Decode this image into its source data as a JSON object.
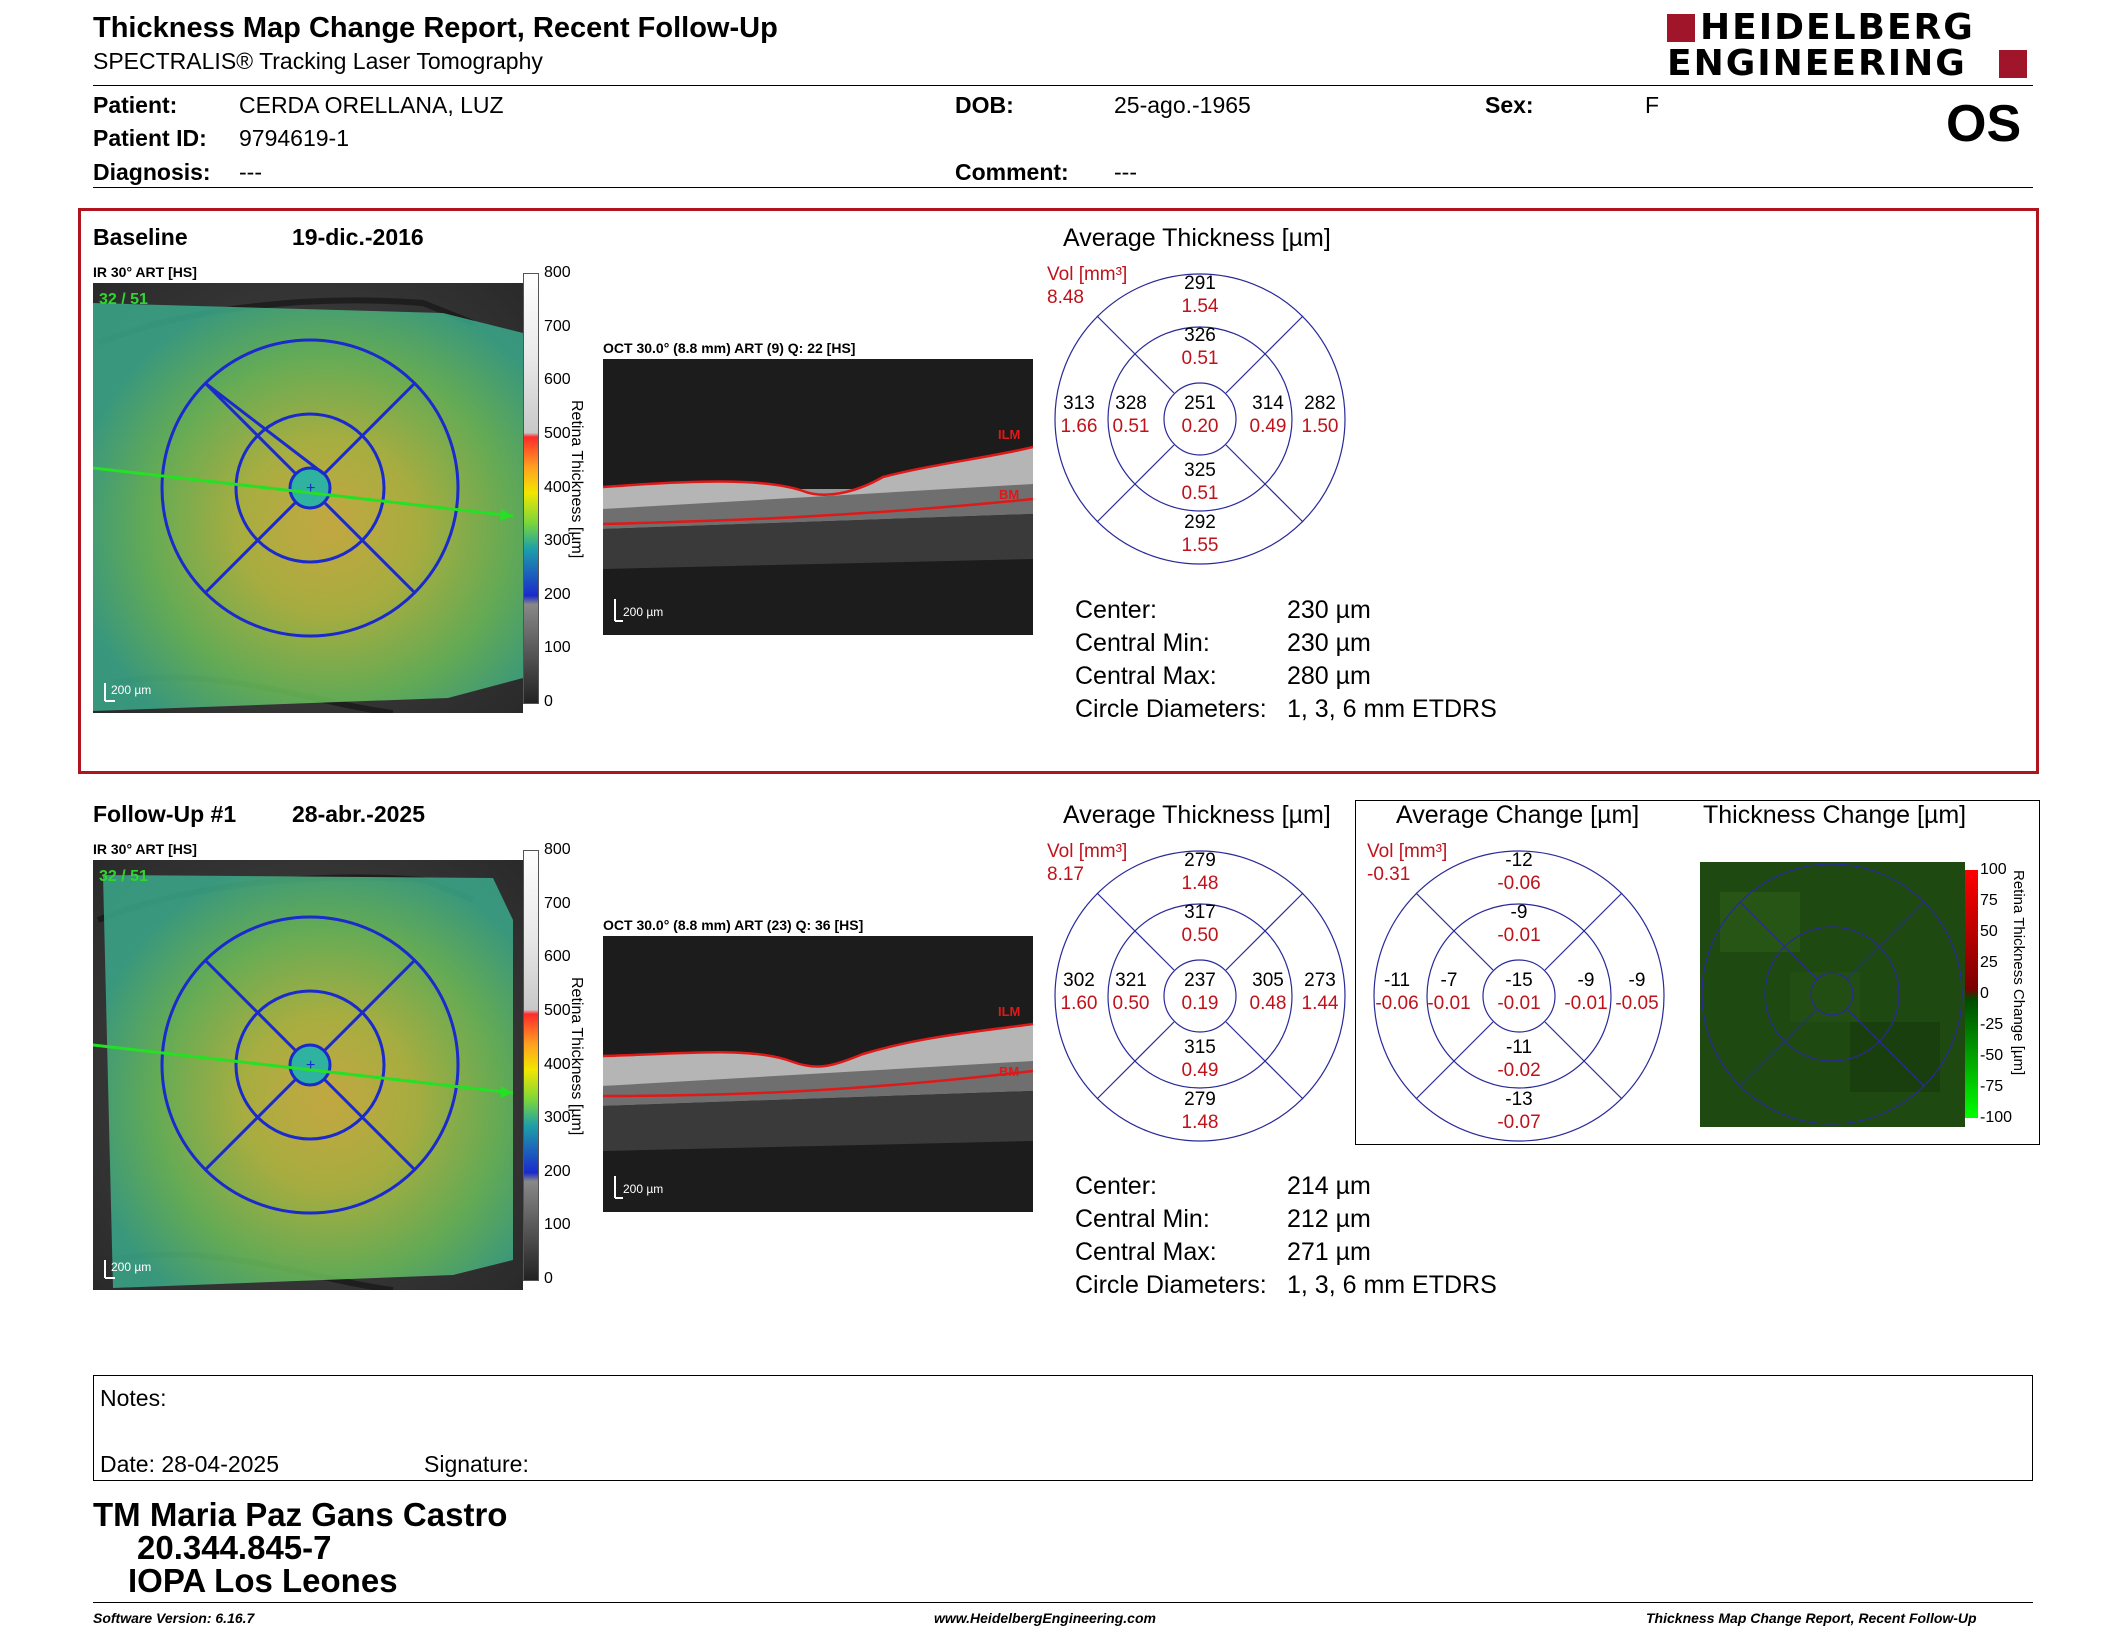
{
  "header": {
    "title": "Thickness Map Change Report, Recent Follow-Up",
    "subtitle": "SPECTRALIS® Tracking Laser Tomography",
    "logo_line1": "HEIDELBERG",
    "logo_line2": "ENGINEERING",
    "brand_color": "#a0152a"
  },
  "patient": {
    "patient_label": "Patient:",
    "patient_value": "CERDA ORELLANA, LUZ",
    "id_label": "Patient ID:",
    "id_value": "9794619-1",
    "diagnosis_label": "Diagnosis:",
    "diagnosis_value": "---",
    "dob_label": "DOB:",
    "dob_value": "25-ago.-1965",
    "comment_label": "Comment:",
    "comment_value": "---",
    "sex_label": "Sex:",
    "sex_value": "F",
    "eye": "OS"
  },
  "baseline": {
    "label": "Baseline",
    "date": "19-dic.-2016",
    "ir_label": "IR 30° ART [HS]",
    "ir_overlay": "32 / 51",
    "scale_bar": "200 µm",
    "oct_label": "OCT 30.0° (8.8 mm) ART (9) Q: 22 [HS]",
    "oct_scale": "200 µm",
    "ilm": "ILM",
    "bm": "BM",
    "colorbar_ticks": [
      "800",
      "700",
      "600",
      "500",
      "400",
      "300",
      "200",
      "100",
      "0"
    ],
    "colorbar_title": "Retina Thickness [µm]",
    "avg_title": "Average Thickness [µm]",
    "vol_label": "Vol [mm³]",
    "vol_total": "8.48",
    "sectors": {
      "outer_sup": {
        "n": "291",
        "v": "1.54"
      },
      "inner_sup": {
        "n": "326",
        "v": "0.51"
      },
      "outer_temp": {
        "n": "313",
        "v": "1.66"
      },
      "inner_temp": {
        "n": "328",
        "v": "0.51"
      },
      "center": {
        "n": "251",
        "v": "0.20"
      },
      "inner_nas": {
        "n": "314",
        "v": "0.49"
      },
      "outer_nas": {
        "n": "282",
        "v": "1.50"
      },
      "inner_inf": {
        "n": "325",
        "v": "0.51"
      },
      "outer_inf": {
        "n": "292",
        "v": "1.55"
      }
    },
    "metrics": [
      {
        "label": "Center:",
        "value": "230 µm"
      },
      {
        "label": "Central Min:",
        "value": "230 µm"
      },
      {
        "label": "Central Max:",
        "value": "280 µm"
      },
      {
        "label": "Circle Diameters:",
        "value": "1, 3, 6 mm ETDRS"
      }
    ]
  },
  "followup": {
    "label": "Follow-Up #1",
    "date": "28-abr.-2025",
    "ir_label": "IR 30° ART [HS]",
    "ir_overlay": "32 / 51",
    "scale_bar": "200 µm",
    "oct_label": "OCT 30.0° (8.8 mm) ART (23) Q: 36 [HS]",
    "oct_scale": "200 µm",
    "ilm": "ILM",
    "bm": "BM",
    "colorbar_ticks": [
      "800",
      "700",
      "600",
      "500",
      "400",
      "300",
      "200",
      "100",
      "0"
    ],
    "colorbar_title": "Retina Thickness [µm]",
    "avg_title": "Average Thickness [µm]",
    "vol_label": "Vol [mm³]",
    "vol_total": "8.17",
    "sectors": {
      "outer_sup": {
        "n": "279",
        "v": "1.48"
      },
      "inner_sup": {
        "n": "317",
        "v": "0.50"
      },
      "outer_temp": {
        "n": "302",
        "v": "1.60"
      },
      "inner_temp": {
        "n": "321",
        "v": "0.50"
      },
      "center": {
        "n": "237",
        "v": "0.19"
      },
      "inner_nas": {
        "n": "305",
        "v": "0.48"
      },
      "outer_nas": {
        "n": "273",
        "v": "1.44"
      },
      "inner_inf": {
        "n": "315",
        "v": "0.49"
      },
      "outer_inf": {
        "n": "279",
        "v": "1.48"
      }
    },
    "change_title": "Average Change [µm]",
    "change_vol_label": "Vol [mm³]",
    "change_vol_total": "-0.31",
    "change_sectors": {
      "outer_sup": {
        "n": "-12",
        "v": "-0.06"
      },
      "inner_sup": {
        "n": "-9",
        "v": "-0.01"
      },
      "outer_temp": {
        "n": "-11",
        "v": "-0.06"
      },
      "inner_temp": {
        "n": "-7",
        "v": "-0.01"
      },
      "center": {
        "n": "-15",
        "v": "-0.01"
      },
      "inner_nas": {
        "n": "-9",
        "v": "-0.01"
      },
      "outer_nas": {
        "n": "-9",
        "v": "-0.05"
      },
      "inner_inf": {
        "n": "-11",
        "v": "-0.02"
      },
      "outer_inf": {
        "n": "-13",
        "v": "-0.07"
      }
    },
    "thickness_change_title": "Thickness Change [µm]",
    "change_colorbar_ticks": [
      "100",
      "75",
      "50",
      "25",
      "0",
      "-25",
      "-50",
      "-75",
      "-100"
    ],
    "change_colorbar_title": "Retina Thickness Change [µm]",
    "metrics": [
      {
        "label": "Center:",
        "value": "214 µm"
      },
      {
        "label": "Central Min:",
        "value": "212 µm"
      },
      {
        "label": "Central Max:",
        "value": "271 µm"
      },
      {
        "label": "Circle Diameters:",
        "value": "1, 3, 6 mm ETDRS"
      }
    ]
  },
  "notes": {
    "notes_label": "Notes:",
    "date_label": "Date: 28-04-2025",
    "signature_label": "Signature:"
  },
  "signature_block": {
    "line1": "TM Maria Paz Gans Castro",
    "line2": "20.344.845-7",
    "line3": "IOPA Los Leones"
  },
  "footer": {
    "left": "Software Version: 6.16.7",
    "center": "www.HeidelbergEngineering.com",
    "right": "Thickness Map Change Report, Recent Follow-Up"
  }
}
